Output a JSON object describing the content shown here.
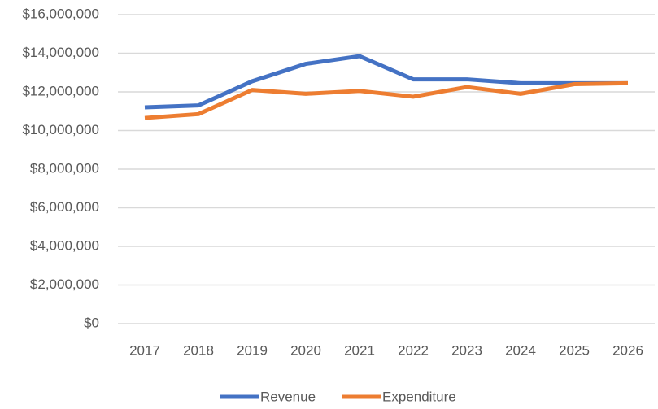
{
  "chart_data": {
    "type": "line",
    "categories": [
      "2017",
      "2018",
      "2019",
      "2020",
      "2021",
      "2022",
      "2023",
      "2024",
      "2025",
      "2026"
    ],
    "series": [
      {
        "name": "Revenue",
        "color": "#4472c4",
        "values": [
          11200000,
          11300000,
          12550000,
          13450000,
          13850000,
          12650000,
          12650000,
          12450000,
          12450000,
          12450000
        ]
      },
      {
        "name": "Expenditure",
        "color": "#ed7d31",
        "values": [
          10650000,
          10850000,
          12100000,
          11900000,
          12050000,
          11750000,
          12250000,
          11900000,
          12400000,
          12450000
        ]
      }
    ],
    "ylim": [
      0,
      16000000
    ],
    "yticks": [
      {
        "value": 0,
        "label": "$0"
      },
      {
        "value": 2000000,
        "label": "$2,000,000"
      },
      {
        "value": 4000000,
        "label": "$4,000,000"
      },
      {
        "value": 6000000,
        "label": "$6,000,000"
      },
      {
        "value": 8000000,
        "label": "$8,000,000"
      },
      {
        "value": 10000000,
        "label": "$10,000,000"
      },
      {
        "value": 12000000,
        "label": "$12,000,000"
      },
      {
        "value": 14000000,
        "label": "$14,000,000"
      },
      {
        "value": 16000000,
        "label": "$16,000,000"
      }
    ],
    "grid": true,
    "legend": "bottom"
  }
}
